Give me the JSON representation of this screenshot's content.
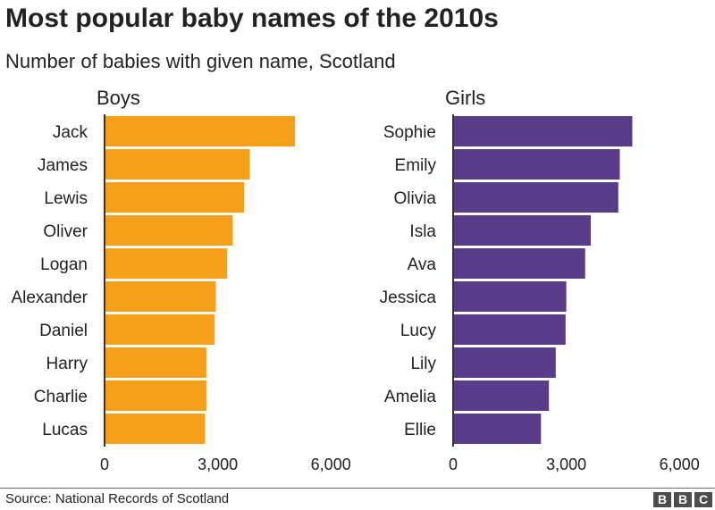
{
  "title": "Most popular baby names of the 2010s",
  "subtitle": "Number of babies with given name, Scotland",
  "source": "Source: National Records of Scotland",
  "logo": [
    "B",
    "B",
    "C"
  ],
  "colors": {
    "boys": "#f6a01a",
    "girls": "#583c8a",
    "axis": "#333333"
  },
  "chart_data": [
    {
      "type": "bar",
      "orientation": "horizontal",
      "title": "Boys",
      "categories": [
        "Jack",
        "James",
        "Lewis",
        "Oliver",
        "Logan",
        "Alexander",
        "Daniel",
        "Harry",
        "Charlie",
        "Lucas"
      ],
      "values": [
        5050,
        3850,
        3700,
        3400,
        3250,
        2950,
        2920,
        2700,
        2700,
        2660
      ],
      "xlim": [
        0,
        6000
      ],
      "xticks": [
        0,
        3000,
        6000
      ],
      "xtick_labels": [
        "0",
        "3,000",
        "6,000"
      ],
      "grid": false,
      "color": "#f6a01a"
    },
    {
      "type": "bar",
      "orientation": "horizontal",
      "title": "Girls",
      "categories": [
        "Sophie",
        "Emily",
        "Olivia",
        "Isla",
        "Ava",
        "Jessica",
        "Lucy",
        "Lily",
        "Amelia",
        "Ellie"
      ],
      "values": [
        4750,
        4420,
        4380,
        3650,
        3500,
        3000,
        2980,
        2720,
        2540,
        2330
      ],
      "xlim": [
        0,
        6000
      ],
      "xticks": [
        0,
        3000,
        6000
      ],
      "xtick_labels": [
        "0",
        "3,000",
        "6,000"
      ],
      "grid": false,
      "color": "#583c8a"
    }
  ]
}
